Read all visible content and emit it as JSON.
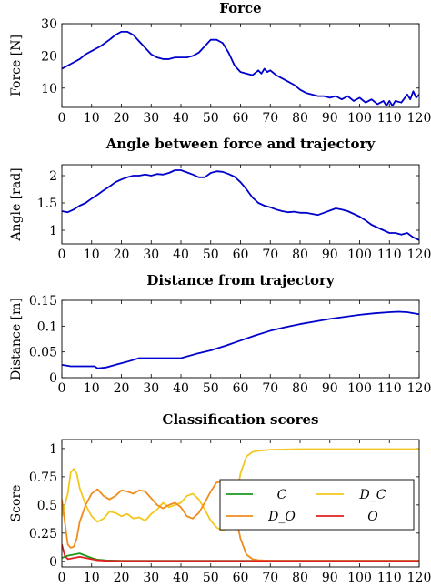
{
  "chart_data": [
    {
      "type": "line",
      "title": "Force",
      "xlabel": "",
      "ylabel": "Force [N]",
      "xlim": [
        0,
        120
      ],
      "ylim": [
        4,
        30
      ],
      "xticks": [
        0,
        10,
        20,
        30,
        40,
        50,
        60,
        70,
        80,
        90,
        100,
        110,
        120
      ],
      "yticks": [
        10,
        20,
        30
      ],
      "series": [
        {
          "color": "#0000cc",
          "x": [
            0,
            3,
            6,
            8,
            10,
            13,
            16,
            18,
            20,
            22,
            24,
            26,
            28,
            30,
            32,
            34,
            36,
            38,
            40,
            42,
            44,
            46,
            48,
            50,
            52,
            54,
            56,
            58,
            60,
            62,
            64,
            66,
            67,
            68,
            69,
            70,
            72,
            74,
            76,
            78,
            80,
            82,
            84,
            86,
            88,
            90,
            92,
            94,
            96,
            98,
            100,
            102,
            104,
            106,
            108,
            109,
            110,
            111,
            112,
            114,
            116,
            117,
            118,
            119,
            120
          ],
          "y": [
            16,
            17.5,
            19,
            20.5,
            21.5,
            23,
            25,
            26.5,
            27.5,
            27.5,
            26.5,
            24.5,
            22.5,
            20.5,
            19.5,
            19,
            19,
            19.5,
            19.5,
            19.5,
            20,
            21,
            23,
            25,
            25,
            24,
            21,
            17,
            15,
            14.5,
            14,
            15.5,
            14.5,
            16,
            15,
            15.5,
            14,
            13,
            12,
            11,
            9.5,
            8.5,
            8,
            7.5,
            7.5,
            7,
            7.5,
            6.5,
            7.5,
            6,
            7,
            5.5,
            6.5,
            5,
            6,
            4.5,
            6,
            4.5,
            6,
            5.5,
            8,
            6.5,
            9,
            7,
            8
          ]
        }
      ]
    },
    {
      "type": "line",
      "title": "Angle between force and trajectory",
      "xlabel": "",
      "ylabel": "Angle [rad]",
      "xlim": [
        0,
        120
      ],
      "ylim": [
        0.75,
        2.2
      ],
      "xticks": [
        0,
        10,
        20,
        30,
        40,
        50,
        60,
        70,
        80,
        90,
        100,
        110,
        120
      ],
      "yticks": [
        1,
        1.5,
        2
      ],
      "series": [
        {
          "color": "#0000cc",
          "x": [
            0,
            2,
            4,
            6,
            8,
            10,
            12,
            14,
            16,
            18,
            20,
            22,
            24,
            26,
            28,
            30,
            32,
            34,
            36,
            38,
            40,
            42,
            44,
            46,
            48,
            50,
            52,
            54,
            56,
            58,
            60,
            62,
            64,
            66,
            68,
            70,
            72,
            74,
            76,
            78,
            80,
            82,
            84,
            86,
            88,
            90,
            92,
            94,
            96,
            98,
            100,
            102,
            104,
            106,
            108,
            110,
            112,
            114,
            116,
            118,
            120
          ],
          "y": [
            1.35,
            1.33,
            1.38,
            1.45,
            1.5,
            1.58,
            1.65,
            1.73,
            1.8,
            1.88,
            1.93,
            1.97,
            2.0,
            2.0,
            2.02,
            2.0,
            2.03,
            2.02,
            2.05,
            2.1,
            2.1,
            2.06,
            2.02,
            1.97,
            1.97,
            2.05,
            2.08,
            2.07,
            2.03,
            1.98,
            1.88,
            1.75,
            1.6,
            1.5,
            1.45,
            1.42,
            1.38,
            1.35,
            1.33,
            1.34,
            1.32,
            1.32,
            1.3,
            1.28,
            1.32,
            1.36,
            1.4,
            1.38,
            1.35,
            1.3,
            1.25,
            1.18,
            1.1,
            1.05,
            1.0,
            0.95,
            0.95,
            0.92,
            0.95,
            0.87,
            0.82
          ]
        }
      ]
    },
    {
      "type": "line",
      "title": "Distance from trajectory",
      "xlabel": "",
      "ylabel": "Distance [m]",
      "xlim": [
        0,
        120
      ],
      "ylim": [
        0,
        0.15
      ],
      "xticks": [
        0,
        10,
        20,
        30,
        40,
        50,
        60,
        70,
        80,
        90,
        100,
        110,
        120
      ],
      "yticks": [
        0,
        0.05,
        0.1,
        0.15
      ],
      "series": [
        {
          "color": "#0000cc",
          "x": [
            0,
            3,
            6,
            11,
            12,
            15,
            18,
            22,
            26,
            30,
            35,
            40,
            45,
            50,
            55,
            60,
            65,
            70,
            75,
            80,
            85,
            90,
            95,
            100,
            105,
            110,
            113,
            116,
            120
          ],
          "y": [
            0.025,
            0.022,
            0.022,
            0.022,
            0.018,
            0.02,
            0.025,
            0.031,
            0.038,
            0.038,
            0.038,
            0.038,
            0.046,
            0.053,
            0.062,
            0.072,
            0.082,
            0.091,
            0.098,
            0.104,
            0.109,
            0.114,
            0.118,
            0.122,
            0.125,
            0.127,
            0.128,
            0.127,
            0.123
          ]
        }
      ]
    },
    {
      "type": "line",
      "title": "Classification scores",
      "xlabel": "",
      "ylabel": "Score",
      "xlim": [
        0,
        120
      ],
      "ylim": [
        -0.05,
        1.08
      ],
      "xticks": [
        0,
        10,
        20,
        30,
        40,
        50,
        60,
        70,
        80,
        90,
        100,
        110,
        120
      ],
      "yticks": [
        0,
        0.25,
        0.5,
        0.75,
        1
      ],
      "yticklabels": [
        "0",
        "0.25",
        "0.5",
        "0.75",
        "1"
      ],
      "legend_position": "right",
      "series": [
        {
          "name": "C",
          "color": "#1a9a1a",
          "x": [
            0,
            2,
            4,
            6,
            8,
            10,
            12,
            15,
            20,
            120
          ],
          "y": [
            0.03,
            0.05,
            0.06,
            0.07,
            0.05,
            0.03,
            0.015,
            0.008,
            0.005,
            0.005
          ]
        },
        {
          "name": "D_C",
          "color": "#f2c81e",
          "x": [
            0,
            2,
            3,
            4,
            5,
            6,
            8,
            10,
            12,
            14,
            16,
            18,
            20,
            22,
            24,
            26,
            28,
            30,
            32,
            34,
            36,
            38,
            40,
            42,
            44,
            46,
            48,
            50,
            52,
            54,
            56,
            58,
            60,
            62,
            64,
            66,
            70,
            80,
            90,
            100,
            110,
            120
          ],
          "y": [
            0.4,
            0.6,
            0.79,
            0.82,
            0.78,
            0.65,
            0.5,
            0.4,
            0.35,
            0.38,
            0.44,
            0.43,
            0.4,
            0.42,
            0.38,
            0.39,
            0.36,
            0.42,
            0.46,
            0.52,
            0.48,
            0.5,
            0.52,
            0.58,
            0.6,
            0.55,
            0.46,
            0.36,
            0.3,
            0.27,
            0.3,
            0.5,
            0.78,
            0.93,
            0.97,
            0.98,
            0.99,
            0.995,
            0.995,
            0.995,
            0.995,
            0.995
          ]
        },
        {
          "name": "D_O",
          "color": "#f08c1e",
          "x": [
            0,
            1,
            2,
            3,
            4,
            5,
            6,
            8,
            10,
            12,
            14,
            16,
            18,
            20,
            22,
            24,
            26,
            28,
            30,
            32,
            34,
            36,
            38,
            40,
            42,
            44,
            46,
            48,
            50,
            52,
            54,
            56,
            57,
            58,
            60,
            62,
            64,
            66,
            70,
            80,
            90,
            100,
            110,
            120
          ],
          "y": [
            0.55,
            0.35,
            0.15,
            0.12,
            0.13,
            0.2,
            0.35,
            0.5,
            0.6,
            0.64,
            0.58,
            0.55,
            0.58,
            0.63,
            0.62,
            0.6,
            0.63,
            0.62,
            0.56,
            0.5,
            0.47,
            0.5,
            0.52,
            0.48,
            0.4,
            0.38,
            0.43,
            0.52,
            0.62,
            0.7,
            0.71,
            0.67,
            0.6,
            0.45,
            0.2,
            0.06,
            0.02,
            0.01,
            0.005,
            0.005,
            0.005,
            0.005,
            0.005,
            0.005
          ]
        },
        {
          "name": "O",
          "color": "#e02020",
          "x": [
            0,
            1,
            2,
            4,
            6,
            8,
            10,
            12,
            15,
            20,
            120
          ],
          "y": [
            0.15,
            0.05,
            0.02,
            0.03,
            0.04,
            0.03,
            0.02,
            0.01,
            0.005,
            0.003,
            0.003
          ]
        }
      ]
    }
  ]
}
